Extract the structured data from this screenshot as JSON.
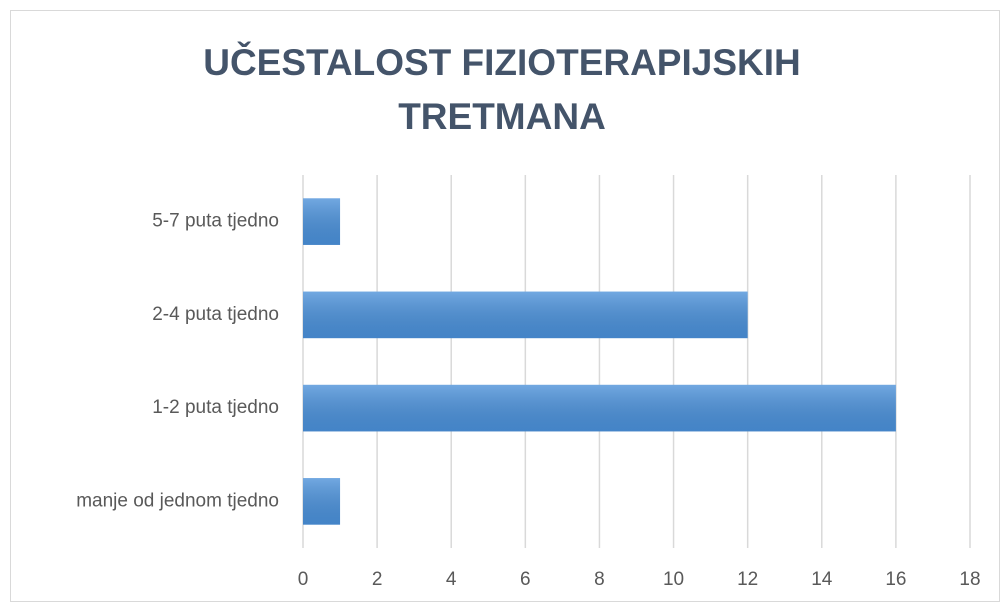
{
  "chart_data": {
    "type": "bar",
    "orientation": "horizontal",
    "title": "UČESTALOST FIZIOTERAPIJSKIH TRETMANA",
    "categories": [
      "manje od jednom tjedno",
      "1-2 puta tjedno",
      "2-4 puta tjedno",
      "5-7 puta tjedno"
    ],
    "values": [
      1,
      16,
      12,
      1
    ],
    "color": "#4a90d9",
    "xlim": [
      0,
      18
    ],
    "xticks": [
      0,
      2,
      4,
      6,
      8,
      10,
      12,
      14,
      16,
      18
    ],
    "grid": true
  }
}
